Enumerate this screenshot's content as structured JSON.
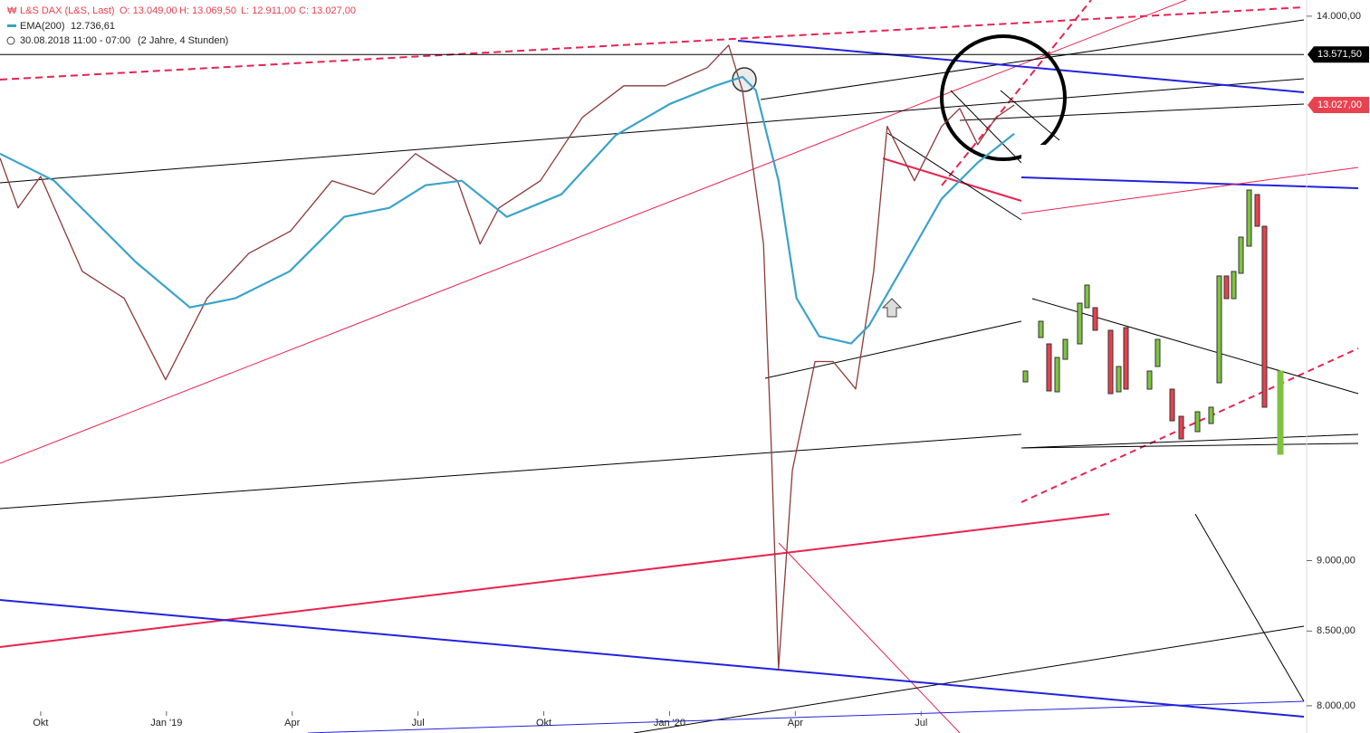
{
  "chart_data": {
    "type": "line",
    "title": "L&S DAX (L&S, Last)",
    "header_values": [
      "O: 13.049,00",
      "H: 13.069,50",
      "L: 12.911,00",
      "C: 13.027,00"
    ],
    "ema_label": "EMA(200)",
    "ema_value": "12.736,61",
    "subtitle": "30.08.2018 11:00 - 07:00",
    "subtitle_note": "(2 Jahre, 4 Stunden)",
    "log_scale": true,
    "xlim": [
      -0.97,
      30.13
    ],
    "ylim": [
      7825,
      14185
    ],
    "xticks": [
      {
        "value": 0,
        "label": "Okt"
      },
      {
        "value": 3,
        "label": "Jan '19"
      },
      {
        "value": 6,
        "label": "Apr"
      },
      {
        "value": 9,
        "label": "Jul"
      },
      {
        "value": 12,
        "label": "Okt"
      },
      {
        "value": 15,
        "label": "Jan '20"
      },
      {
        "value": 18,
        "label": "Apr"
      },
      {
        "value": 21,
        "label": "Jul"
      }
    ],
    "yticks": [
      {
        "value": 14000,
        "label": "14.000,00"
      },
      {
        "value": 9000,
        "label": "9.000,00"
      },
      {
        "value": 8500,
        "label": "8.500,00"
      },
      {
        "value": 8000,
        "label": "8.000,00"
      }
    ],
    "price_markers": [
      {
        "value": 13571.5,
        "label": "13.571,50",
        "color": "#000000"
      },
      {
        "value": 13027,
        "label": "13.027,00",
        "color": "#e8414f"
      }
    ],
    "series": [
      {
        "name": "L&S DAX (L&S, Last)",
        "color": "#8b3a3a",
        "x": [
          -0.97,
          -0.54,
          0,
          0.99,
          1.99,
          2.98,
          3.97,
          4.97,
          5.96,
          6.95,
          7.95,
          8.94,
          9.94,
          10.48,
          10.93,
          11.92,
          12.92,
          13.91,
          14.9,
          15.9,
          16.41,
          16.74,
          17.24,
          17.43,
          17.6,
          17.93,
          18.47,
          18.9,
          19.44,
          19.87,
          20.19,
          20.84,
          21.49,
          21.92,
          22.35,
          22.79,
          23.22
        ],
        "values": [
          12477,
          11983,
          12292,
          11382,
          11135,
          10423,
          11135,
          11550,
          11760,
          12250,
          12116,
          12522,
          12250,
          11637,
          11982,
          12250,
          12895,
          13231,
          13231,
          13427,
          13675,
          13182,
          11637,
          9830,
          8244,
          9685,
          10578,
          10578,
          10346,
          11382,
          12802,
          12250,
          12802,
          12990,
          12614,
          12895,
          13027
        ]
      },
      {
        "name": "EMA(200)",
        "color": "#3aa3c8",
        "x": [
          -0.97,
          0.32,
          1.19,
          2.27,
          3.56,
          4.64,
          5.94,
          7.24,
          8.32,
          9.18,
          10.04,
          11.12,
          12.42,
          13.71,
          15.01,
          16.09,
          16.74,
          17.06,
          17.6,
          18.03,
          18.57,
          19.33,
          19.76,
          20.63,
          21.49,
          22.35,
          23.22
        ],
        "values": [
          12522,
          12250,
          11896,
          11467,
          11053,
          11135,
          11382,
          11896,
          11983,
          12205,
          12250,
          11896,
          12116,
          12708,
          13038,
          13231,
          13328,
          13182,
          12250,
          11135,
          10797,
          10734,
          10892,
          11467,
          12071,
          12432,
          12726
        ]
      }
    ]
  }
}
